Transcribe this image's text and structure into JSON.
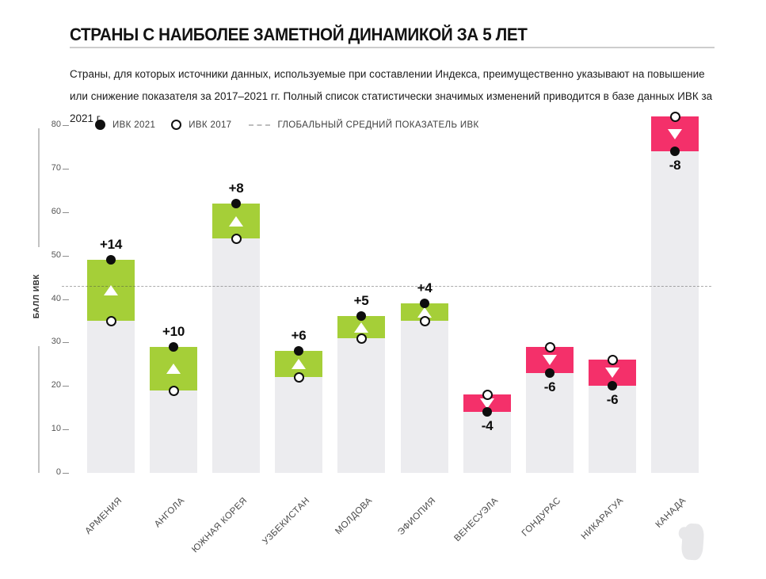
{
  "page": {
    "title": "СТРАНЫ С НАИБОЛЕЕ ЗАМЕТНОЙ ДИНАМИКОЙ ЗА 5 ЛЕТ",
    "description": "Страны, для которых источники данных, используемые при составлении Индекса, преимущественно указывают на повышение или снижение показателя за 2017–2021 гг. Полный список статистически значимых изменений приводится в базе данных ИВК за 2021 г."
  },
  "chart_data": {
    "type": "bar",
    "title": "СТРАНЫ С НАИБОЛЕЕ ЗАМЕТНОЙ ДИНАМИКОЙ ЗА 5 ЛЕТ",
    "ylabel": "БАЛЛ ИВК",
    "ylim": [
      0,
      80
    ],
    "yticks": [
      0,
      10,
      20,
      30,
      40,
      50,
      60,
      70,
      80
    ],
    "grid": "global average dashed line only",
    "legend_position": "top-left",
    "legend": [
      {
        "label": "ИВК 2021",
        "marker": "filled-circle"
      },
      {
        "label": "ИВК 2017",
        "marker": "open-circle"
      },
      {
        "label": "ГЛОБАЛЬНЫЙ СРЕДНИЙ ПОКАЗАТЕЛЬ ИВК",
        "marker": "dashed-line"
      }
    ],
    "global_average": 43,
    "categories": [
      "АРМЕНИЯ",
      "АНГОЛА",
      "ЮЖНАЯ КОРЕЯ",
      "УЗБЕКИСТАН",
      "МОЛДОВА",
      "ЭФИОПИЯ",
      "ВЕНЕСУЭЛА",
      "ГОНДУРАС",
      "НИКАРАГУА",
      "КАНАДА"
    ],
    "series": [
      {
        "name": "ИВК 2021",
        "values": [
          49,
          29,
          62,
          28,
          36,
          39,
          14,
          23,
          20,
          74
        ]
      },
      {
        "name": "ИВК 2017",
        "values": [
          35,
          19,
          54,
          22,
          31,
          35,
          18,
          29,
          26,
          82
        ]
      }
    ],
    "changes": [
      "+14",
      "+10",
      "+8",
      "+6",
      "+5",
      "+4",
      "-4",
      "-6",
      "-6",
      "-8"
    ],
    "colors": {
      "increase": "#a5cf38",
      "decrease": "#f4306a",
      "bar_background": "#ececef",
      "marker_2021": "#0e0e0e",
      "marker_2017_fill": "#ffffff",
      "triangle": "#ffffff"
    }
  }
}
